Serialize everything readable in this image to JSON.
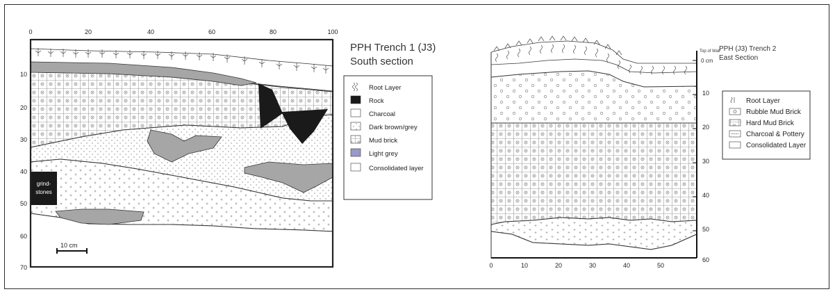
{
  "left": {
    "title_line1": "PPH Trench 1 (J3)",
    "title_line2": "South section",
    "x_ticks": [
      "0",
      "20",
      "40",
      "60",
      "80",
      "100"
    ],
    "y_ticks": [
      "10",
      "20",
      "30",
      "40",
      "50",
      "60",
      "70"
    ],
    "scale_label": "10 cm",
    "grindstones_line1": "grind-",
    "grindstones_line2": "stones",
    "legend": [
      "Root Layer",
      "Rock",
      "Charcoal",
      "Dark brown/grey",
      "Mud brick",
      "Light grey",
      "Consolidated layer"
    ]
  },
  "right": {
    "title_line1": "PPH (J3) Trench 2",
    "title_line2": "East Section",
    "top_of_wall_line1": "Top of Wall",
    "top_of_wall_line2": "0 cm",
    "y_ticks": [
      "10",
      "20",
      "30",
      "40",
      "50",
      "60"
    ],
    "x_ticks": [
      "0",
      "10",
      "20",
      "30",
      "40",
      "50"
    ],
    "legend": [
      "Root Layer",
      "Rubble Mud Brick",
      "Hard Mud Brick",
      "Charcoal & Pottery",
      "Consolidated Layer"
    ]
  },
  "colors": {
    "rock": "#1a1a1a",
    "light_grey": "#a6a6a6",
    "legend_light_grey": "#9a9ac8",
    "line": "#333333"
  }
}
